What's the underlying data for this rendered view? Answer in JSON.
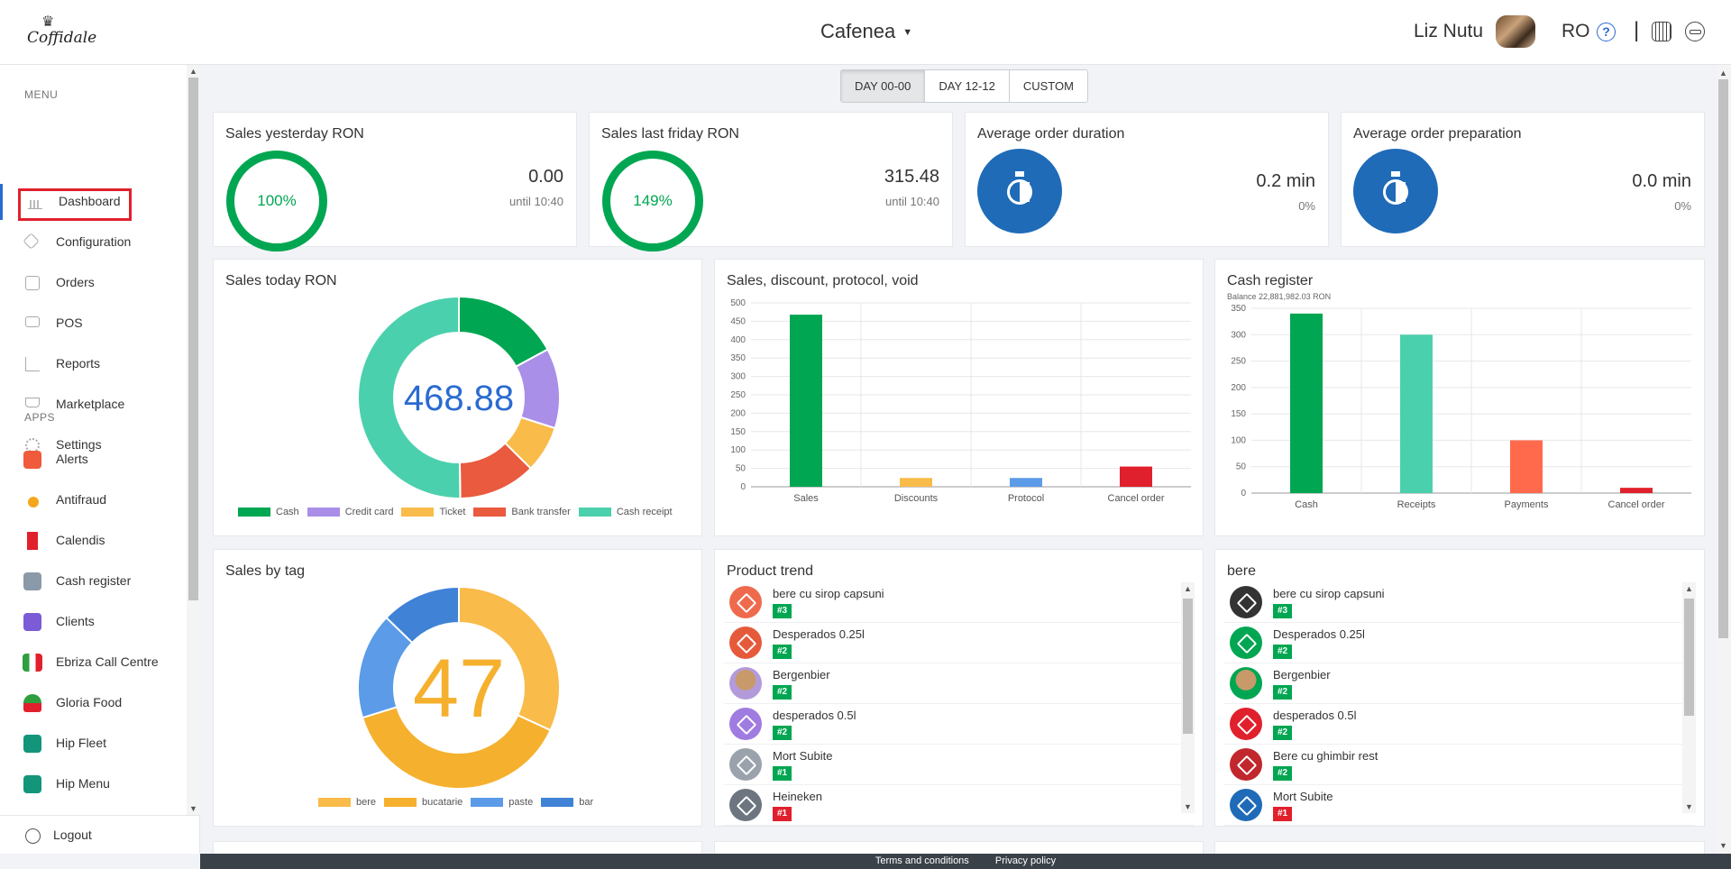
{
  "header": {
    "logo_text": "Coffidale",
    "venue": "Cafenea",
    "user_name": "Liz Nutu",
    "lang": "RO"
  },
  "sidebar": {
    "menu_label": "MENU",
    "apps_label": "APPS",
    "menu": [
      {
        "label": "Dashboard"
      },
      {
        "label": "Configuration"
      },
      {
        "label": "Orders"
      },
      {
        "label": "POS"
      },
      {
        "label": "Reports"
      },
      {
        "label": "Marketplace"
      },
      {
        "label": "Settings"
      }
    ],
    "apps": [
      {
        "label": "Alerts",
        "color": "#ef5b3b"
      },
      {
        "label": "Antifraud",
        "color": "#f4a71d"
      },
      {
        "label": "Calendis",
        "color": "#e0202c"
      },
      {
        "label": "Cash register",
        "color": "#8a9aa8"
      },
      {
        "label": "Clients",
        "color": "#7b5bd6"
      },
      {
        "label": "Ebriza Call Centre",
        "color": "#e0202c"
      },
      {
        "label": "Gloria Food",
        "color": "#2e9e3f"
      },
      {
        "label": "Hip Fleet",
        "color": "#13957a"
      },
      {
        "label": "Hip Menu",
        "color": "#13957a"
      }
    ],
    "logout": "Logout"
  },
  "period_tabs": [
    "DAY 00-00",
    "DAY 12-12",
    "CUSTOM"
  ],
  "kpis": {
    "yesterday": {
      "title": "Sales yesterday RON",
      "percent": "100%",
      "value": "0.00",
      "sub": "until 10:40"
    },
    "friday": {
      "title": "Sales last friday RON",
      "percent": "149%",
      "value": "315.48",
      "sub": "until 10:40"
    },
    "duration": {
      "title": "Average order duration",
      "value": "0.2 min",
      "sub": "0%"
    },
    "prep": {
      "title": "Average order preparation",
      "value": "0.0 min",
      "sub": "0%"
    }
  },
  "sales_today": {
    "title": "Sales today RON",
    "center": "468.88"
  },
  "sales_by_tag": {
    "title": "Sales by tag",
    "center": "47"
  },
  "product_trend": {
    "title": "Product trend",
    "items": [
      {
        "name": "bere cu sirop capsuni",
        "rank": "#3",
        "color": "#ef6a4c",
        "img": false
      },
      {
        "name": "Desperados 0.25l",
        "rank": "#2",
        "color": "#e65a3c",
        "img": false
      },
      {
        "name": "Bergenbier",
        "rank": "#2",
        "color": "#b39bdb",
        "img": true
      },
      {
        "name": "desperados 0.5l",
        "rank": "#2",
        "color": "#a07ce0",
        "img": false
      },
      {
        "name": "Mort Subite",
        "rank": "#1",
        "color": "#9aa3ab",
        "img": false
      },
      {
        "name": "Heineken",
        "rank": "#1",
        "color": "#6d7680",
        "img": false
      }
    ]
  },
  "bere": {
    "title": "bere",
    "items": [
      {
        "name": "bere cu sirop capsuni",
        "rank": "#3",
        "color": "#333333",
        "img": false
      },
      {
        "name": "Desperados 0.25l",
        "rank": "#2",
        "color": "#00a651",
        "img": false
      },
      {
        "name": "Bergenbier",
        "rank": "#2",
        "color": "#00a651",
        "img": true
      },
      {
        "name": "desperados 0.5l",
        "rank": "#2",
        "color": "#e0202c",
        "img": false
      },
      {
        "name": "Bere cu ghimbir rest",
        "rank": "#2",
        "color": "#c1272d",
        "img": false
      },
      {
        "name": "Mort Subite",
        "rank": "#1",
        "color": "#1f6bb8",
        "img": false
      }
    ]
  },
  "footer": {
    "terms": "Terms and conditions",
    "privacy": "Privacy policy"
  },
  "chart_data": [
    {
      "type": "pie",
      "id": "sales_today",
      "title": "Sales today RON",
      "categories": [
        "Cash",
        "Credit card",
        "Ticket",
        "Bank transfer",
        "Cash receipt"
      ],
      "values": [
        80,
        60,
        35,
        58,
        235
      ],
      "colors": [
        "#00a651",
        "#a98fe8",
        "#f9bb4a",
        "#e95a3e",
        "#4bd0ad"
      ]
    },
    {
      "type": "bar",
      "id": "sales_discount",
      "title": "Sales, discount, protocol, void",
      "categories": [
        "Sales",
        "Discounts",
        "Protocol",
        "Cancel order"
      ],
      "values": [
        468,
        24,
        24,
        55
      ],
      "colors": [
        "#00a651",
        "#f9bb4a",
        "#5b9be8",
        "#e0202c"
      ],
      "ylim": [
        0,
        500
      ],
      "yticks": [
        0,
        50,
        100,
        150,
        200,
        250,
        300,
        350,
        400,
        450,
        500
      ]
    },
    {
      "type": "bar",
      "id": "cash_register",
      "title": "Cash register",
      "subtitle": "Balance 22,881,982.03 RON",
      "categories": [
        "Cash",
        "Receipts",
        "Payments",
        "Cancel order"
      ],
      "values": [
        340,
        300,
        100,
        10
      ],
      "colors": [
        "#00a651",
        "#4bd0ad",
        "#ff6a4d",
        "#e0202c"
      ],
      "ylim": [
        0,
        350
      ],
      "yticks": [
        0,
        50,
        100,
        150,
        200,
        250,
        300,
        350
      ]
    },
    {
      "type": "pie",
      "id": "sales_by_tag",
      "title": "Sales by tag",
      "categories": [
        "bere",
        "bucatarie",
        "paste",
        "bar"
      ],
      "values": [
        15,
        18,
        8,
        6
      ],
      "colors": [
        "#f9bb4a",
        "#f5b02e",
        "#5b9be8",
        "#3f82d6"
      ]
    }
  ]
}
